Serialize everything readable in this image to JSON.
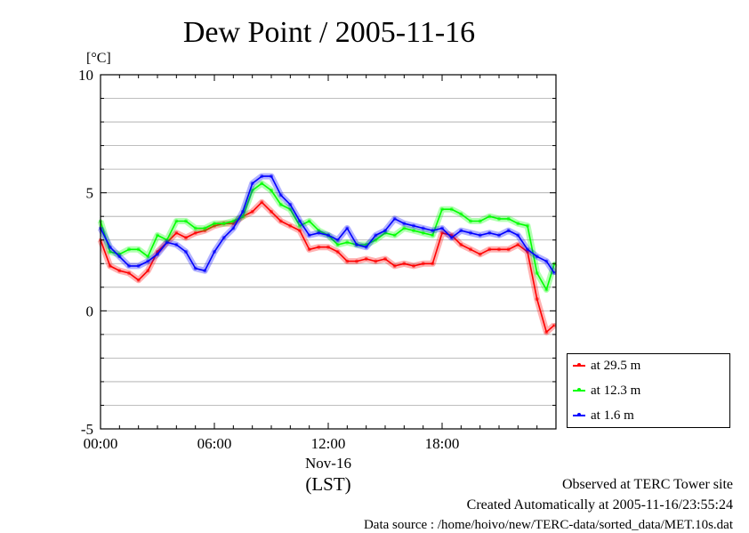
{
  "chart_data": {
    "type": "line",
    "title": "Dew Point / 2005-11-16",
    "ylabel": "[°C]",
    "xlabel": "(LST)",
    "date_label": "Nov-16",
    "ylim": [
      -5,
      10
    ],
    "xlim": [
      "00:00",
      "24:00"
    ],
    "xticks": [
      "00:00",
      "06:00",
      "12:00",
      "18:00"
    ],
    "yticks": [
      "10",
      "5",
      "0",
      "-5"
    ],
    "grid": true,
    "legend_position": "right, below plot",
    "x": [
      "00:00",
      "00:30",
      "01:00",
      "01:30",
      "02:00",
      "02:30",
      "03:00",
      "03:30",
      "04:00",
      "04:30",
      "05:00",
      "05:30",
      "06:00",
      "06:30",
      "07:00",
      "07:30",
      "08:00",
      "08:30",
      "09:00",
      "09:30",
      "10:00",
      "10:30",
      "11:00",
      "11:30",
      "12:00",
      "12:30",
      "13:00",
      "13:30",
      "14:00",
      "14:30",
      "15:00",
      "15:30",
      "16:00",
      "16:30",
      "17:00",
      "17:30",
      "18:00",
      "18:30",
      "19:00",
      "19:30",
      "20:00",
      "20:30",
      "21:00",
      "21:30",
      "22:00",
      "22:30",
      "23:00",
      "23:30",
      "23:55"
    ],
    "series": [
      {
        "name": "at 29.5 m",
        "color": "#ff0000",
        "values": [
          3.0,
          1.9,
          1.7,
          1.6,
          1.3,
          1.7,
          2.5,
          2.9,
          3.3,
          3.1,
          3.3,
          3.4,
          3.6,
          3.7,
          3.7,
          4.0,
          4.2,
          4.6,
          4.2,
          3.8,
          3.6,
          3.4,
          2.6,
          2.7,
          2.7,
          2.5,
          2.1,
          2.1,
          2.2,
          2.1,
          2.2,
          1.9,
          2.0,
          1.9,
          2.0,
          2.0,
          3.3,
          3.2,
          2.8,
          2.6,
          2.4,
          2.6,
          2.6,
          2.6,
          2.8,
          2.5,
          0.5,
          -0.9,
          -0.6
        ]
      },
      {
        "name": "at 12.3 m",
        "color": "#00ff00",
        "values": [
          3.8,
          2.5,
          2.4,
          2.6,
          2.6,
          2.3,
          3.2,
          3.0,
          3.8,
          3.8,
          3.5,
          3.5,
          3.7,
          3.7,
          3.8,
          4.0,
          5.1,
          5.4,
          5.1,
          4.5,
          4.3,
          3.6,
          3.8,
          3.4,
          3.2,
          2.8,
          2.9,
          2.8,
          2.8,
          3.0,
          3.3,
          3.2,
          3.5,
          3.4,
          3.3,
          3.2,
          4.3,
          4.3,
          4.1,
          3.8,
          3.8,
          4.0,
          3.9,
          3.9,
          3.7,
          3.6,
          1.6,
          0.9,
          2.0
        ]
      },
      {
        "name": "at 1.6 m",
        "color": "#0000ff",
        "values": [
          3.5,
          2.7,
          2.3,
          1.9,
          1.9,
          2.1,
          2.4,
          2.9,
          2.8,
          2.5,
          1.8,
          1.7,
          2.5,
          3.1,
          3.5,
          4.2,
          5.4,
          5.7,
          5.7,
          4.9,
          4.5,
          3.8,
          3.2,
          3.3,
          3.2,
          3.0,
          3.5,
          2.8,
          2.7,
          3.2,
          3.4,
          3.9,
          3.7,
          3.6,
          3.5,
          3.4,
          3.5,
          3.1,
          3.4,
          3.3,
          3.2,
          3.3,
          3.2,
          3.4,
          3.2,
          2.6,
          2.3,
          2.1,
          1.6
        ]
      }
    ]
  },
  "footer": {
    "line1": "Observed at TERC Tower site",
    "line2": "Created Automatically at 2005-11-16/23:55:24",
    "line3": "Data source : /home/hoivo/new/TERC-data/sorted_data/MET.10s.dat"
  }
}
